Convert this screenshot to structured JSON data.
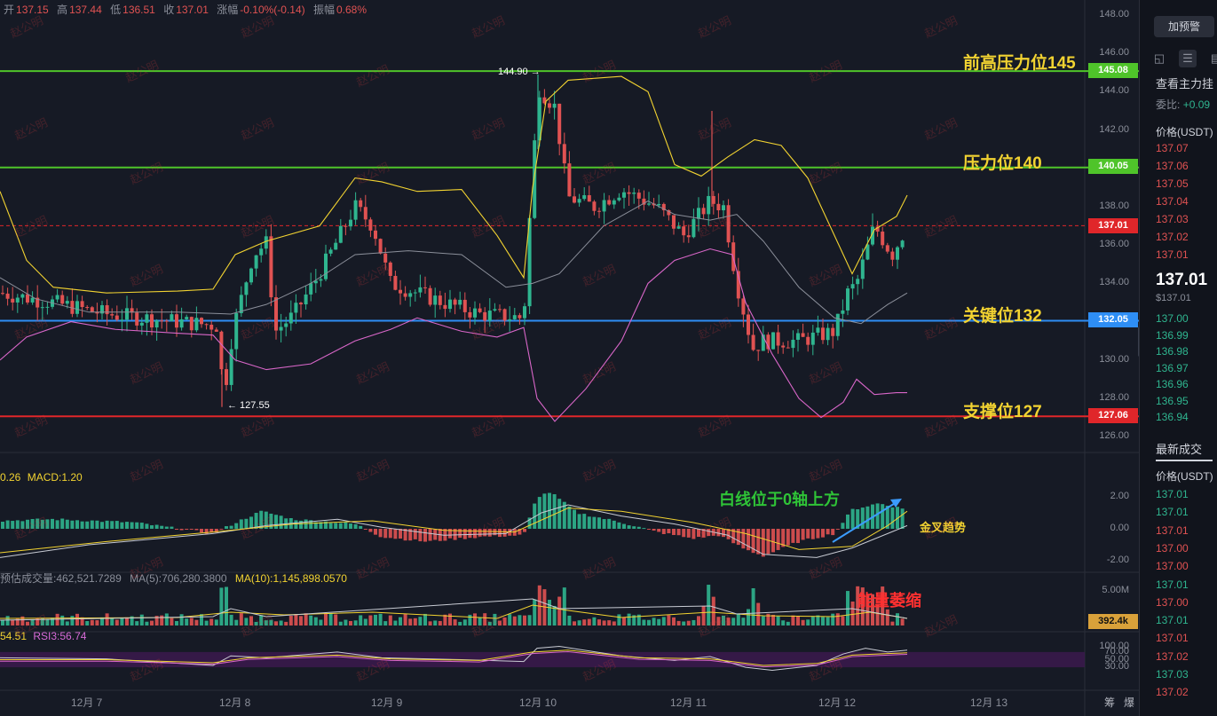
{
  "header": {
    "open_label": "开",
    "open": "137.15",
    "high_label": "高",
    "high": "137.44",
    "low_label": "低",
    "low": "136.51",
    "close_label": "收",
    "close": "137.01",
    "change_label": "涨幅",
    "change": "-0.10%(-0.14)",
    "amplitude_label": "振幅",
    "amplitude": "0.68%"
  },
  "price_axis": [
    "148.00",
    "146.00",
    "144.00",
    "142.00",
    "140.00",
    "138.00",
    "136.00",
    "134.00",
    "132.00",
    "130.00",
    "128.00",
    "126.00"
  ],
  "macd_axis": [
    "2.00",
    "0.00",
    "-2.00"
  ],
  "volume_axis": [
    "5.00M"
  ],
  "rsi_axis": [
    "100.00",
    "70.00",
    "50.00",
    "30.00"
  ],
  "price_tags": {
    "line145": "145.08",
    "line140": "140.05",
    "current": "137.01",
    "line132": "132.05",
    "line127": "127.06",
    "volume": "392.4k"
  },
  "annotations": {
    "line145": "前高压力位145",
    "line140": "压力位140",
    "line132": "关键位132",
    "line127": "支撑位127",
    "macd_note": "白线位于0轴上方",
    "golden_cross": "金叉趋势",
    "volume_note": "能量萎缩",
    "high_mark": "144.90 →",
    "low_mark": "← 127.55"
  },
  "macd_legend": {
    "left": "0.26",
    "macd": "MACD:1.20"
  },
  "volume_legend": {
    "vol": "预估成交量:462,521.7289",
    "ma5": "MA(5):706,280.3800",
    "ma10": "MA(10):1,145,898.0570"
  },
  "rsi_legend": {
    "left": "54.51",
    "rsi3": "RSI3:56.74"
  },
  "dates": [
    "12月 7",
    "12月 8",
    "12月 9",
    "12月 10",
    "12月 11",
    "12月 12",
    "12月 13"
  ],
  "bottom_icons": [
    "筹",
    "爆"
  ],
  "watermark": "赵公明",
  "sidebar": {
    "alert_button": "加预警",
    "view_label": "查看主力挂",
    "ratio_label": "委比:",
    "ratio_value": "+0.09",
    "price_header": "价格(USDT)",
    "asks": [
      "137.07",
      "137.06",
      "137.05",
      "137.04",
      "137.03",
      "137.02",
      "137.01"
    ],
    "last_price": "137.01",
    "last_price_usd": "$137.01",
    "bids": [
      "137.00",
      "136.99",
      "136.98",
      "136.97",
      "136.96",
      "136.95",
      "136.94"
    ],
    "trades_title": "最新成交",
    "trades_header": "价格(USDT)",
    "trades": [
      {
        "p": "137.01",
        "c": "green"
      },
      {
        "p": "137.01",
        "c": "green"
      },
      {
        "p": "137.01",
        "c": "red"
      },
      {
        "p": "137.00",
        "c": "red"
      },
      {
        "p": "137.00",
        "c": "red"
      },
      {
        "p": "137.01",
        "c": "green"
      },
      {
        "p": "137.00",
        "c": "red"
      },
      {
        "p": "137.01",
        "c": "green"
      },
      {
        "p": "137.01",
        "c": "red"
      },
      {
        "p": "137.02",
        "c": "red"
      },
      {
        "p": "137.03",
        "c": "green"
      },
      {
        "p": "137.02",
        "c": "red"
      }
    ]
  },
  "colors": {
    "up": "#2fb58f",
    "down": "#e05252",
    "line145": "#4fc42a",
    "line140": "#4fc42a",
    "line132": "#2e8ef5",
    "line127": "#e0262a"
  }
}
